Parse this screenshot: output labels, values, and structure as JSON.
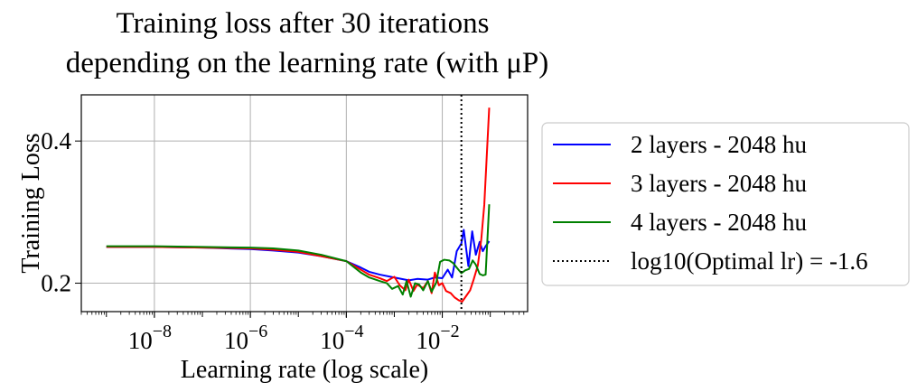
{
  "chart_data": {
    "type": "line",
    "title": [
      "Training loss after 30 iterations",
      "depending on the learning rate (with μP)"
    ],
    "xlabel": "Learning rate (log scale)",
    "ylabel": "Training Loss",
    "x_scale": "log",
    "xlim": [
      3e-10,
      0.6
    ],
    "ylim": [
      0.16,
      0.465
    ],
    "x_ticks": [
      {
        "value": 1e-08,
        "base": "10",
        "exp": "−8"
      },
      {
        "value": 1e-06,
        "base": "10",
        "exp": "−6"
      },
      {
        "value": 0.0001,
        "base": "10",
        "exp": "−4"
      },
      {
        "value": 0.01,
        "base": "10",
        "exp": "−2"
      }
    ],
    "y_ticks": [
      {
        "value": 0.2,
        "label": "0.2"
      },
      {
        "value": 0.4,
        "label": "0.4"
      }
    ],
    "grid": true,
    "legend_position": "outside-right",
    "vline": {
      "x": 0.025,
      "style": "dotted",
      "color": "#000000",
      "label": "log10(Optimal lr) = -1.6"
    },
    "series": [
      {
        "name": "2 layers - 2048 hu",
        "color": "#0000ff",
        "points": [
          [
            1e-09,
            0.251
          ],
          [
            1e-08,
            0.251
          ],
          [
            1e-07,
            0.25
          ],
          [
            1e-06,
            0.248
          ],
          [
            3e-06,
            0.246
          ],
          [
            1e-05,
            0.243
          ],
          [
            3e-05,
            0.238
          ],
          [
            0.0001,
            0.231
          ],
          [
            0.0002,
            0.222
          ],
          [
            0.0003,
            0.216
          ],
          [
            0.0005,
            0.212
          ],
          [
            0.001,
            0.208
          ],
          [
            0.002,
            0.204
          ],
          [
            0.003,
            0.206
          ],
          [
            0.005,
            0.205
          ],
          [
            0.007,
            0.208
          ],
          [
            0.01,
            0.207
          ],
          [
            0.013,
            0.219
          ],
          [
            0.016,
            0.208
          ],
          [
            0.02,
            0.245
          ],
          [
            0.025,
            0.256
          ],
          [
            0.028,
            0.275
          ],
          [
            0.035,
            0.224
          ],
          [
            0.042,
            0.273
          ],
          [
            0.05,
            0.24
          ],
          [
            0.06,
            0.258
          ],
          [
            0.07,
            0.245
          ],
          [
            0.08,
            0.252
          ],
          [
            0.095,
            0.259
          ]
        ]
      },
      {
        "name": "3 layers - 2048 hu",
        "color": "#ff0000",
        "points": [
          [
            1e-09,
            0.251
          ],
          [
            1e-08,
            0.251
          ],
          [
            1e-07,
            0.25
          ],
          [
            1e-06,
            0.249
          ],
          [
            3e-06,
            0.247
          ],
          [
            1e-05,
            0.244
          ],
          [
            3e-05,
            0.238
          ],
          [
            0.0001,
            0.231
          ],
          [
            0.0002,
            0.219
          ],
          [
            0.0003,
            0.212
          ],
          [
            0.0005,
            0.207
          ],
          [
            0.0007,
            0.203
          ],
          [
            0.001,
            0.209
          ],
          [
            0.0013,
            0.197
          ],
          [
            0.0017,
            0.19
          ],
          [
            0.002,
            0.205
          ],
          [
            0.0025,
            0.189
          ],
          [
            0.003,
            0.198
          ],
          [
            0.004,
            0.193
          ],
          [
            0.005,
            0.203
          ],
          [
            0.006,
            0.186
          ],
          [
            0.007,
            0.215
          ],
          [
            0.0085,
            0.197
          ],
          [
            0.01,
            0.2
          ],
          [
            0.012,
            0.189
          ],
          [
            0.015,
            0.186
          ],
          [
            0.018,
            0.18
          ],
          [
            0.022,
            0.176
          ],
          [
            0.026,
            0.174
          ],
          [
            0.03,
            0.18
          ],
          [
            0.038,
            0.19
          ],
          [
            0.045,
            0.205
          ],
          [
            0.055,
            0.225
          ],
          [
            0.065,
            0.262
          ],
          [
            0.075,
            0.31
          ],
          [
            0.095,
            0.447
          ]
        ]
      },
      {
        "name": "4 layers - 2048 hu",
        "color": "#008000",
        "points": [
          [
            1e-09,
            0.252
          ],
          [
            1e-08,
            0.252
          ],
          [
            1e-07,
            0.251
          ],
          [
            1e-06,
            0.25
          ],
          [
            3e-06,
            0.249
          ],
          [
            1e-05,
            0.246
          ],
          [
            3e-05,
            0.24
          ],
          [
            0.0001,
            0.231
          ],
          [
            0.0002,
            0.215
          ],
          [
            0.0003,
            0.208
          ],
          [
            0.0005,
            0.203
          ],
          [
            0.0007,
            0.2
          ],
          [
            0.0009,
            0.192
          ],
          [
            0.0012,
            0.196
          ],
          [
            0.0015,
            0.184
          ],
          [
            0.0018,
            0.203
          ],
          [
            0.0022,
            0.181
          ],
          [
            0.0027,
            0.2
          ],
          [
            0.0033,
            0.198
          ],
          [
            0.004,
            0.19
          ],
          [
            0.005,
            0.203
          ],
          [
            0.006,
            0.188
          ],
          [
            0.0075,
            0.201
          ],
          [
            0.009,
            0.23
          ],
          [
            0.011,
            0.233
          ],
          [
            0.014,
            0.232
          ],
          [
            0.017,
            0.228
          ],
          [
            0.02,
            0.222
          ],
          [
            0.025,
            0.214
          ],
          [
            0.03,
            0.218
          ],
          [
            0.036,
            0.22
          ],
          [
            0.043,
            0.232
          ],
          [
            0.05,
            0.226
          ],
          [
            0.06,
            0.213
          ],
          [
            0.07,
            0.211
          ],
          [
            0.08,
            0.212
          ],
          [
            0.095,
            0.311
          ]
        ]
      }
    ]
  }
}
